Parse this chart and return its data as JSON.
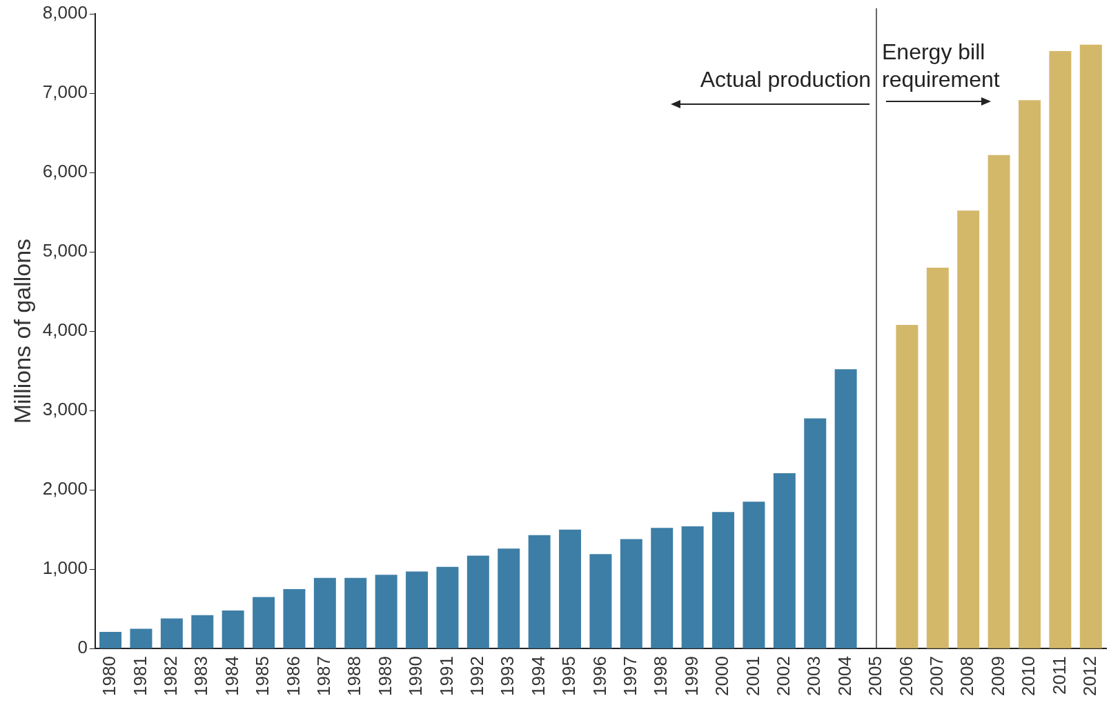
{
  "chart_data": {
    "type": "bar",
    "ylabel": "Millions of gallons",
    "categories": [
      "1980",
      "1981",
      "1982",
      "1983",
      "1984",
      "1985",
      "1986",
      "1987",
      "1988",
      "1989",
      "1990",
      "1991",
      "1992",
      "1993",
      "1994",
      "1995",
      "1996",
      "1997",
      "1998",
      "1999",
      "2000",
      "2001",
      "2002",
      "2003",
      "2004",
      "2005",
      "2006",
      "2007",
      "2008",
      "2009",
      "2010",
      "2011",
      "2012"
    ],
    "values": [
      210,
      250,
      380,
      420,
      480,
      650,
      750,
      890,
      890,
      930,
      970,
      1030,
      1170,
      1260,
      1430,
      1500,
      1190,
      1380,
      1520,
      1540,
      1720,
      1850,
      2210,
      2900,
      3520,
      null,
      4080,
      4800,
      5520,
      6220,
      6910,
      7530,
      7610
    ],
    "colors": [
      "#3d7ea6",
      "#3d7ea6",
      "#3d7ea6",
      "#3d7ea6",
      "#3d7ea6",
      "#3d7ea6",
      "#3d7ea6",
      "#3d7ea6",
      "#3d7ea6",
      "#3d7ea6",
      "#3d7ea6",
      "#3d7ea6",
      "#3d7ea6",
      "#3d7ea6",
      "#3d7ea6",
      "#3d7ea6",
      "#3d7ea6",
      "#3d7ea6",
      "#3d7ea6",
      "#3d7ea6",
      "#3d7ea6",
      "#3d7ea6",
      "#3d7ea6",
      "#3d7ea6",
      "#3d7ea6",
      null,
      "#d4b86a",
      "#d4b86a",
      "#d4b86a",
      "#d4b86a",
      "#d4b86a",
      "#d4b86a",
      "#d4b86a"
    ],
    "ylim": [
      0,
      8000
    ],
    "yticks": [
      0,
      {
        "value": 1000,
        "label": "1,000"
      },
      {
        "value": 2000,
        "label": "2,000"
      },
      {
        "value": 3000,
        "label": "3,000"
      },
      {
        "value": 4000,
        "label": "4,000"
      },
      {
        "value": 5000,
        "label": "5,000"
      },
      {
        "value": 6000,
        "label": "6,000"
      },
      {
        "value": 7000,
        "label": "7,000"
      },
      {
        "value": 8000,
        "label": "8,000"
      }
    ],
    "ref_lines": [
      {
        "axis": "x",
        "value": "2005",
        "color": "#333333"
      }
    ],
    "annotations": [
      "Actual production",
      "Energy bill\nrequirement"
    ],
    "grid": false,
    "legend": false
  }
}
